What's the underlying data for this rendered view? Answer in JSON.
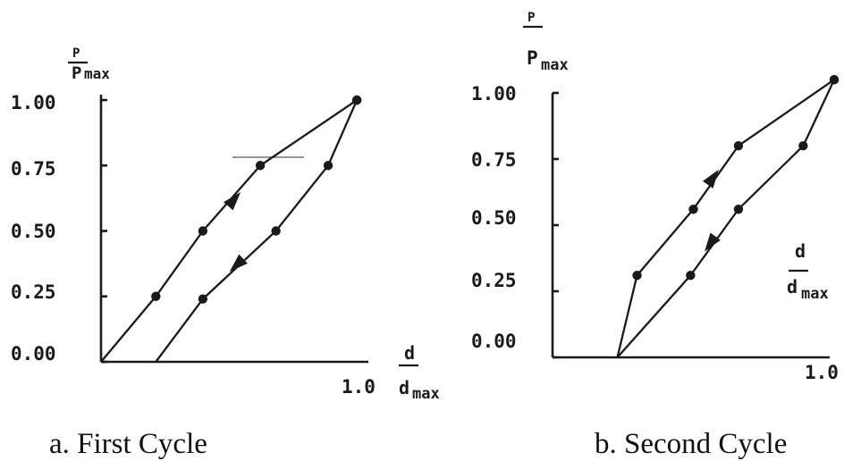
{
  "chart_data": [
    {
      "type": "line",
      "caption": "a. First Cycle",
      "ylabel_num": "P",
      "ylabel_den": "P",
      "ylabel_sub": "max",
      "xlabel_num": "d",
      "xlabel_den": "d",
      "xlabel_sub": "max",
      "yticks": [
        "1.00",
        "0.75",
        "0.50",
        "0.25",
        "0.00"
      ],
      "ytick_values": [
        1.0,
        0.75,
        0.5,
        0.25,
        0.0
      ],
      "xtick_label": "1.0",
      "xlim": [
        0,
        1.0
      ],
      "ylim": [
        0,
        1.0
      ],
      "series": [
        {
          "x": [
            0.0,
            0.21,
            0.39,
            0.61,
            0.98
          ],
          "y": [
            0.0,
            0.25,
            0.5,
            0.75,
            1.0
          ],
          "markers": [
            false,
            true,
            true,
            true,
            true
          ]
        },
        {
          "x": [
            0.98,
            0.87,
            0.67,
            0.39,
            0.21
          ],
          "y": [
            1.0,
            0.75,
            0.5,
            0.24,
            0.0
          ],
          "markers": [
            true,
            true,
            true,
            true,
            false
          ]
        }
      ],
      "arrows": [
        {
          "x": 0.51,
          "y": 0.62,
          "dir": "up"
        },
        {
          "x": 0.52,
          "y": 0.37,
          "dir": "down"
        }
      ]
    },
    {
      "type": "line",
      "caption": "b. Second Cycle",
      "ylabel_num": "P",
      "ylabel_den": "P",
      "ylabel_sub": "max",
      "xlabel_num": "d",
      "xlabel_den": "d",
      "xlabel_sub": "max",
      "yticks": [
        "1.00",
        "0.75",
        "0.50",
        "0.25",
        "0.00"
      ],
      "ytick_values": [
        1.0,
        0.75,
        0.5,
        0.25,
        0.0
      ],
      "xtick_label": "1.0",
      "xlim": [
        0,
        1.0
      ],
      "ylim": [
        0,
        1.0
      ],
      "series": [
        {
          "x": [
            0.23,
            0.3,
            0.5,
            0.66,
            1.0
          ],
          "y": [
            0.0,
            0.31,
            0.56,
            0.8,
            1.05
          ],
          "markers": [
            false,
            true,
            true,
            true,
            true
          ]
        },
        {
          "x": [
            1.0,
            0.89,
            0.66,
            0.49,
            0.23
          ],
          "y": [
            1.05,
            0.8,
            0.56,
            0.31,
            0.0
          ],
          "markers": [
            true,
            true,
            true,
            true,
            false
          ]
        }
      ],
      "arrows": [
        {
          "x": 0.57,
          "y": 0.68,
          "dir": "up"
        },
        {
          "x": 0.56,
          "y": 0.43,
          "dir": "down"
        }
      ]
    }
  ]
}
